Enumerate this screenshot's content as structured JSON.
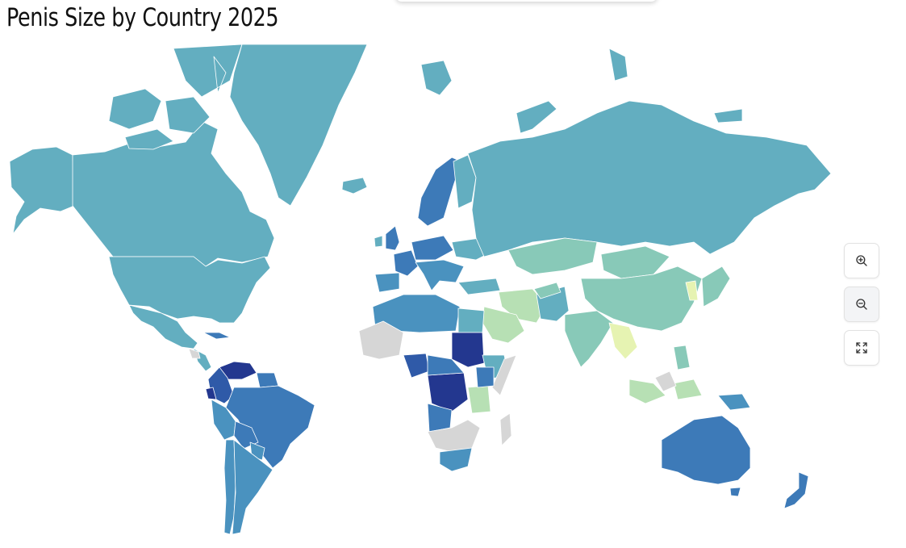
{
  "title": "Penis Size by Country 2025",
  "colors": {
    "no_data": "#d6d6d6",
    "darkest": "#23378f",
    "dark": "#2f5aa8",
    "medium_dark": "#3d7ab8",
    "medium": "#4a92bf",
    "teal": "#63aec0",
    "light_teal": "#88c9b8",
    "pale_green": "#b7e0b4",
    "pale_yellow": "#e6f3b2"
  },
  "controls": {
    "zoom_in": "zoom-in-icon",
    "zoom_out": "zoom-out-icon",
    "fullscreen": "expand-icon"
  }
}
